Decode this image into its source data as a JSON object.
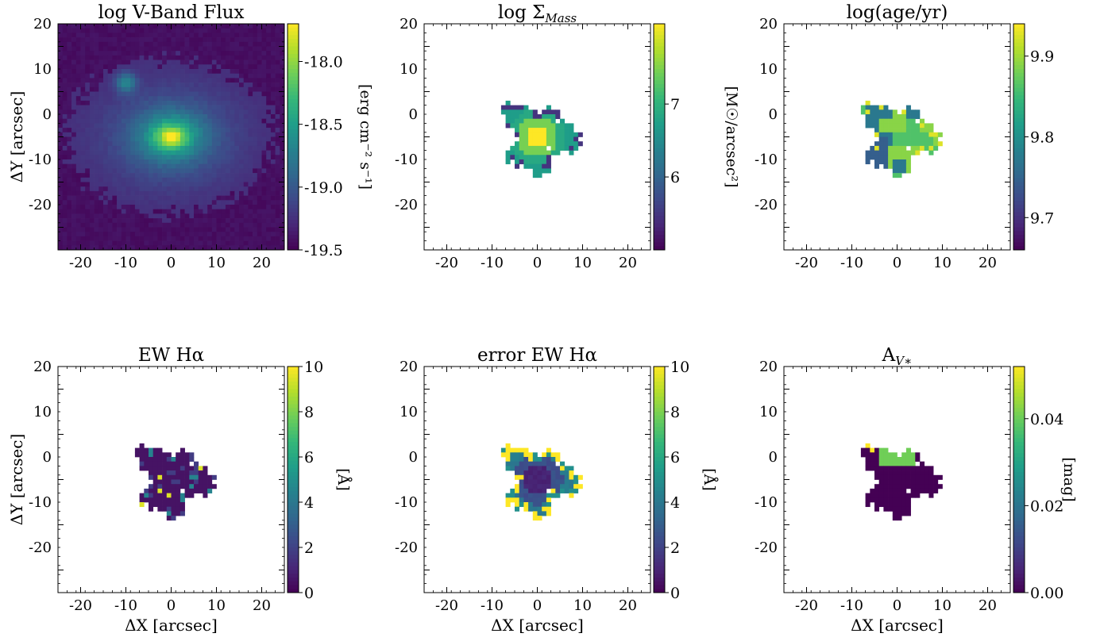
{
  "chart_data": [
    {
      "type": "heatmap",
      "map": "flux",
      "title": "log V-Band Flux",
      "xlabel": "",
      "ylabel": "ΔY [arcsec]",
      "xlim": [
        -25,
        25
      ],
      "ylim": [
        -25,
        25
      ],
      "xticks": [
        "-20",
        "-10",
        "0",
        "10",
        "20"
      ],
      "yticks": [
        "20",
        "10",
        "0",
        "-10",
        "-20"
      ],
      "cbar": {
        "label": "[erg cm⁻² s⁻¹]",
        "range": [
          -19.5,
          -17.7
        ],
        "ticks": [
          "-18.0",
          "-18.5",
          "-19.0",
          "-19.5"
        ],
        "tick_values": [
          -18.0,
          -18.5,
          -19.0,
          -19.5
        ]
      },
      "features": {
        "core_peak": [
          0,
          0
        ],
        "companion_source": [
          -10,
          12
        ]
      }
    },
    {
      "type": "heatmap",
      "map": "mass",
      "title": "log Σ",
      "title_sub": "Mass",
      "xlabel": "",
      "ylabel": "",
      "xlim": [
        -25,
        25
      ],
      "ylim": [
        -25,
        25
      ],
      "xticks": [
        "-20",
        "-10",
        "0",
        "10",
        "20"
      ],
      "yticks": [
        "20",
        "10",
        "0",
        "-10",
        "-20"
      ],
      "cbar": {
        "label": "[M☉/arcsec²]",
        "range": [
          5.0,
          8.1
        ],
        "ticks": [
          "7",
          "6"
        ],
        "tick_values": [
          7,
          6
        ]
      }
    },
    {
      "type": "heatmap",
      "map": "age",
      "title": "log(age/yr)",
      "xlabel": "",
      "ylabel": "",
      "xlim": [
        -25,
        25
      ],
      "ylim": [
        -25,
        25
      ],
      "xticks": [
        "-20",
        "-10",
        "0",
        "10",
        "20"
      ],
      "yticks": [
        "20",
        "10",
        "0",
        "-10",
        "-20"
      ],
      "cbar": {
        "label": "",
        "range": [
          9.66,
          9.94
        ],
        "ticks": [
          "9.9",
          "9.8",
          "9.7"
        ],
        "tick_values": [
          9.9,
          9.8,
          9.7
        ]
      }
    },
    {
      "type": "heatmap",
      "map": "ew",
      "title": "EW Hα",
      "xlabel": "ΔX [arcsec]",
      "ylabel": "ΔY [arcsec]",
      "xlim": [
        -25,
        25
      ],
      "ylim": [
        -25,
        25
      ],
      "xticks": [
        "-20",
        "-10",
        "0",
        "10",
        "20"
      ],
      "yticks": [
        "20",
        "10",
        "0",
        "-10",
        "-20"
      ],
      "cbar": {
        "label": "[Å]",
        "range": [
          0,
          10
        ],
        "ticks": [
          "10",
          "8",
          "6",
          "4",
          "2",
          "0"
        ],
        "tick_values": [
          10,
          8,
          6,
          4,
          2,
          0
        ]
      }
    },
    {
      "type": "heatmap",
      "map": "ewerr",
      "title": "error EW Hα",
      "xlabel": "ΔX [arcsec]",
      "ylabel": "",
      "xlim": [
        -25,
        25
      ],
      "ylim": [
        -25,
        25
      ],
      "xticks": [
        "-20",
        "-10",
        "0",
        "10",
        "20"
      ],
      "yticks": [
        "20",
        "10",
        "0",
        "-10",
        "-20"
      ],
      "cbar": {
        "label": "[Å]",
        "range": [
          0,
          10
        ],
        "ticks": [
          "10",
          "8",
          "6",
          "4",
          "2",
          "0"
        ],
        "tick_values": [
          10,
          8,
          6,
          4,
          2,
          0
        ]
      }
    },
    {
      "type": "heatmap",
      "map": "av",
      "title": "A",
      "title_sub": "V∗",
      "xlabel": "ΔX [arcsec]",
      "ylabel": "",
      "xlim": [
        -25,
        25
      ],
      "ylim": [
        -25,
        25
      ],
      "xticks": [
        "-20",
        "-10",
        "0",
        "10",
        "20"
      ],
      "yticks": [
        "20",
        "10",
        "0",
        "-10",
        "-20"
      ],
      "cbar": {
        "label": "[mag]",
        "range": [
          0,
          0.052
        ],
        "ticks": [
          "0.04",
          "0.02",
          "0.00"
        ],
        "tick_values": [
          0.04,
          0.02,
          0.0
        ]
      }
    }
  ],
  "colormap": "viridis"
}
